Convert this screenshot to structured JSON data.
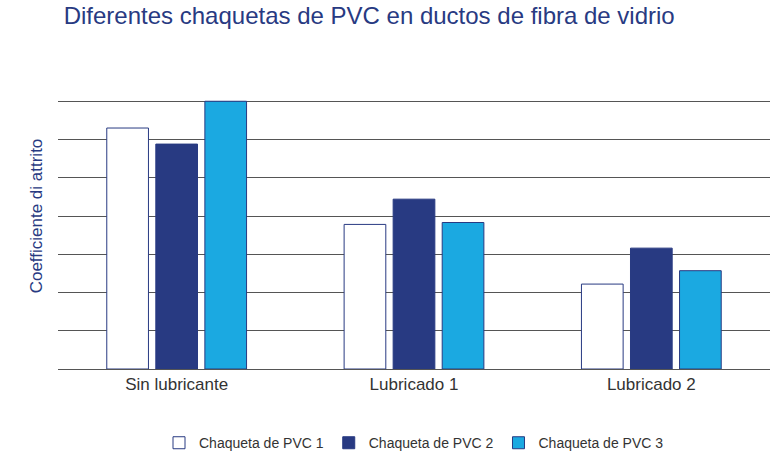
{
  "chart_data": {
    "type": "bar",
    "title": "Diferentes chaquetas de PVC en ductos de fibra de vidrio",
    "y_label": "Coefficiente di attrito",
    "categories": [
      "Sin lubricante",
      "Lubricado 1",
      "Lubricado 2"
    ],
    "series": [
      {
        "name": "Chaqueta de PVC 1",
        "color": "#ffffff",
        "values": [
          6.3,
          3.78,
          2.22
        ]
      },
      {
        "name": "Chaqueta de PVC 2",
        "color": "#283a82",
        "values": [
          5.88,
          4.44,
          3.16
        ]
      },
      {
        "name": "Chaqueta de PVC 3",
        "color": "#1ba9e1",
        "values": [
          7.0,
          3.83,
          2.57
        ]
      }
    ],
    "ylim": [
      0,
      8
    ],
    "yticks": [
      0,
      1,
      2,
      3,
      4,
      5,
      6,
      7,
      8
    ],
    "grid": true,
    "legend": "bottom",
    "tick_labels": "x"
  }
}
